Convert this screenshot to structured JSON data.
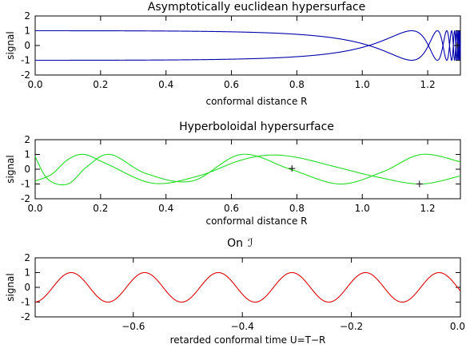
{
  "chart_data": [
    {
      "type": "line",
      "title": "Asymptotically euclidean hypersurface",
      "xlabel": "conformal distance R",
      "ylabel": "signal",
      "xlim": [
        0.0,
        1.3
      ],
      "ylim": [
        -2,
        2
      ],
      "xticks": [
        0.0,
        0.2,
        0.4,
        0.6,
        0.8,
        1.0,
        1.2
      ],
      "xtick_labels": [
        "0.0",
        "0.2",
        "0.4",
        "0.6",
        "0.8",
        "1.0",
        "1.2"
      ],
      "yticks": [
        -2,
        -1,
        0,
        1,
        2
      ],
      "ytick_labels": [
        "-2",
        "-1",
        "0",
        "1",
        "2"
      ],
      "color": "#0000aa",
      "series": [
        {
          "formula": "cos(2*pi*0.0735*R/(1.32-R))",
          "amplitude": 1
        },
        {
          "formula": "-cos(2*pi*0.0735*R/(1.32-R))",
          "amplitude": 1
        }
      ],
      "markers": [
        {
          "x": 1.29,
          "y": 0
        }
      ]
    },
    {
      "type": "line",
      "title": "Hyperboloidal hypersurface",
      "xlabel": "conformal distance R",
      "ylabel": "signal",
      "xlim": [
        0.0,
        1.3
      ],
      "ylim": [
        -2,
        2
      ],
      "xticks": [
        0.0,
        0.2,
        0.4,
        0.6,
        0.8,
        1.0,
        1.2
      ],
      "xtick_labels": [
        "0.0",
        "0.2",
        "0.4",
        "0.6",
        "0.8",
        "1.0",
        "1.2"
      ],
      "yticks": [
        -2,
        -1,
        0,
        1,
        2
      ],
      "ytick_labels": [
        "-2",
        "-1",
        "0",
        "1",
        "2"
      ],
      "color": "#22dd22",
      "series": [
        {
          "x": [
            0.0,
            0.05,
            0.1,
            0.15,
            0.22,
            0.36,
            0.5,
            0.62,
            0.71,
            0.8,
            0.92,
            1.05,
            1.18,
            1.3
          ],
          "y": [
            -0.8,
            -0.35,
            0.65,
            1.0,
            0.35,
            -0.95,
            -0.45,
            0.55,
            0.95,
            0.8,
            0.15,
            -0.55,
            -1.0,
            -0.45
          ]
        },
        {
          "x": [
            0.0,
            0.04,
            0.1,
            0.16,
            0.23,
            0.34,
            0.48,
            0.63,
            0.78,
            0.93,
            1.06,
            1.18,
            1.3
          ],
          "y": [
            0.85,
            -0.7,
            -1.0,
            0.2,
            1.0,
            -0.3,
            -0.8,
            1.0,
            0.0,
            -1.0,
            -0.2,
            1.0,
            0.5
          ]
        }
      ],
      "markers": [
        {
          "x": 0.785,
          "y": 0.05
        },
        {
          "x": 1.175,
          "y": -1.0
        }
      ]
    },
    {
      "type": "line",
      "title": "On",
      "title_symbol": "ℐ",
      "xlabel": "retarded conformal time U=T−R",
      "ylabel": "signal",
      "xlim": [
        -0.78,
        0.0
      ],
      "ylim": [
        -2,
        2
      ],
      "xticks": [
        -0.6,
        -0.4,
        -0.2,
        0.0
      ],
      "xtick_labels": [
        "−0.6",
        "−0.4",
        "−0.2",
        "0.0"
      ],
      "yticks": [
        -2,
        -1,
        0,
        1,
        2
      ],
      "ytick_labels": [
        "-2",
        "-1",
        "0",
        "1",
        "2"
      ],
      "color": "#dd0000",
      "series": [
        {
          "formula": "sin(2*pi*(U+0.78)/0.135 - 1.5)",
          "amplitude": 1
        }
      ]
    }
  ]
}
